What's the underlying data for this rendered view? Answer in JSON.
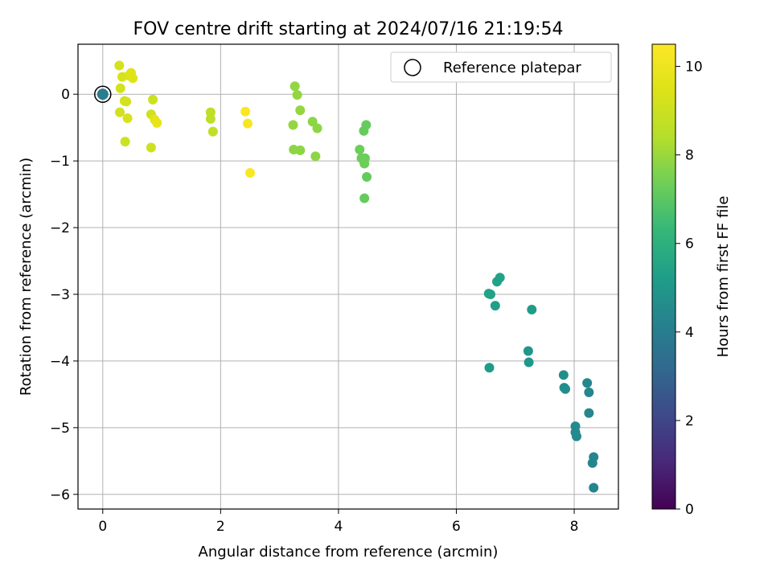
{
  "chart_data": {
    "type": "scatter",
    "title": "FOV centre drift starting at 2024/07/16 21:19:54",
    "xlabel": "Angular distance from reference (arcmin)",
    "ylabel": "Rotation from reference (arcmin)",
    "xlim": [
      -0.42,
      8.75
    ],
    "ylim": [
      -6.22,
      0.75
    ],
    "xticks": [
      0,
      2,
      4,
      6,
      8
    ],
    "yticks": [
      0,
      -1,
      -2,
      -3,
      -4,
      -5,
      -6
    ],
    "grid": true,
    "legend": {
      "position": "top-right",
      "entries": [
        "Reference platepar"
      ]
    },
    "colorbar": {
      "label": "Hours from first FF file",
      "min": 0,
      "max": 10.5,
      "ticks": [
        0,
        2,
        4,
        6,
        8,
        10
      ],
      "colormap": "viridis"
    },
    "reference_point": {
      "x": 0,
      "y": 0,
      "c": 4.0
    },
    "points": [
      {
        "x": 0.28,
        "y": 0.43,
        "c": 9.2
      },
      {
        "x": 0.33,
        "y": 0.26,
        "c": 9.3
      },
      {
        "x": 0.44,
        "y": 0.28,
        "c": 9.4
      },
      {
        "x": 0.48,
        "y": 0.32,
        "c": 9.5
      },
      {
        "x": 0.51,
        "y": 0.24,
        "c": 9.5
      },
      {
        "x": 0.3,
        "y": 0.09,
        "c": 9.2
      },
      {
        "x": 0.37,
        "y": -0.1,
        "c": 9.2
      },
      {
        "x": 0.4,
        "y": -0.11,
        "c": 9.2
      },
      {
        "x": 0.29,
        "y": -0.27,
        "c": 9.1
      },
      {
        "x": 0.42,
        "y": -0.36,
        "c": 9.3
      },
      {
        "x": 0.38,
        "y": -0.71,
        "c": 9.0
      },
      {
        "x": 0.85,
        "y": -0.08,
        "c": 9.0
      },
      {
        "x": 0.82,
        "y": -0.3,
        "c": 9.1
      },
      {
        "x": 0.88,
        "y": -0.38,
        "c": 9.7
      },
      {
        "x": 0.92,
        "y": -0.43,
        "c": 9.8
      },
      {
        "x": 0.82,
        "y": -0.8,
        "c": 9.0
      },
      {
        "x": 1.83,
        "y": -0.27,
        "c": 8.6
      },
      {
        "x": 1.83,
        "y": -0.37,
        "c": 8.6
      },
      {
        "x": 1.87,
        "y": -0.56,
        "c": 8.7
      },
      {
        "x": 2.42,
        "y": -0.26,
        "c": 10.4
      },
      {
        "x": 2.46,
        "y": -0.44,
        "c": 10.3
      },
      {
        "x": 2.5,
        "y": -1.18,
        "c": 10.4
      },
      {
        "x": 3.26,
        "y": 0.12,
        "c": 7.9
      },
      {
        "x": 3.3,
        "y": -0.01,
        "c": 7.9
      },
      {
        "x": 3.35,
        "y": -0.24,
        "c": 7.9
      },
      {
        "x": 3.23,
        "y": -0.46,
        "c": 7.9
      },
      {
        "x": 3.56,
        "y": -0.41,
        "c": 7.8
      },
      {
        "x": 3.64,
        "y": -0.51,
        "c": 7.8
      },
      {
        "x": 3.24,
        "y": -0.83,
        "c": 7.8
      },
      {
        "x": 3.35,
        "y": -0.84,
        "c": 7.8
      },
      {
        "x": 3.61,
        "y": -0.93,
        "c": 7.8
      },
      {
        "x": 4.47,
        "y": -0.46,
        "c": 7.2
      },
      {
        "x": 4.43,
        "y": -0.55,
        "c": 7.2
      },
      {
        "x": 4.36,
        "y": -0.83,
        "c": 7.3
      },
      {
        "x": 4.39,
        "y": -0.96,
        "c": 7.3
      },
      {
        "x": 4.45,
        "y": -0.96,
        "c": 7.3
      },
      {
        "x": 4.44,
        "y": -1.04,
        "c": 7.3
      },
      {
        "x": 4.48,
        "y": -1.24,
        "c": 7.2
      },
      {
        "x": 4.44,
        "y": -1.56,
        "c": 7.2
      },
      {
        "x": 6.55,
        "y": -2.99,
        "c": 5.4
      },
      {
        "x": 6.58,
        "y": -3.0,
        "c": 5.4
      },
      {
        "x": 6.69,
        "y": -2.81,
        "c": 5.4
      },
      {
        "x": 6.74,
        "y": -2.75,
        "c": 5.4
      },
      {
        "x": 6.66,
        "y": -3.17,
        "c": 5.3
      },
      {
        "x": 7.28,
        "y": -3.23,
        "c": 5.2
      },
      {
        "x": 6.56,
        "y": -4.1,
        "c": 5.1
      },
      {
        "x": 7.22,
        "y": -3.85,
        "c": 5.0
      },
      {
        "x": 7.23,
        "y": -4.02,
        "c": 5.0
      },
      {
        "x": 7.82,
        "y": -4.21,
        "c": 4.6
      },
      {
        "x": 7.83,
        "y": -4.4,
        "c": 4.6
      },
      {
        "x": 7.85,
        "y": -4.42,
        "c": 4.6
      },
      {
        "x": 8.22,
        "y": -4.33,
        "c": 4.4
      },
      {
        "x": 8.25,
        "y": -4.47,
        "c": 4.4
      },
      {
        "x": 8.25,
        "y": -4.78,
        "c": 4.4
      },
      {
        "x": 8.02,
        "y": -4.98,
        "c": 4.5
      },
      {
        "x": 8.02,
        "y": -5.07,
        "c": 4.5
      },
      {
        "x": 8.04,
        "y": -5.13,
        "c": 4.5
      },
      {
        "x": 8.33,
        "y": -5.44,
        "c": 4.3
      },
      {
        "x": 8.31,
        "y": -5.53,
        "c": 4.3
      },
      {
        "x": 8.33,
        "y": -5.9,
        "c": 4.3
      }
    ]
  }
}
